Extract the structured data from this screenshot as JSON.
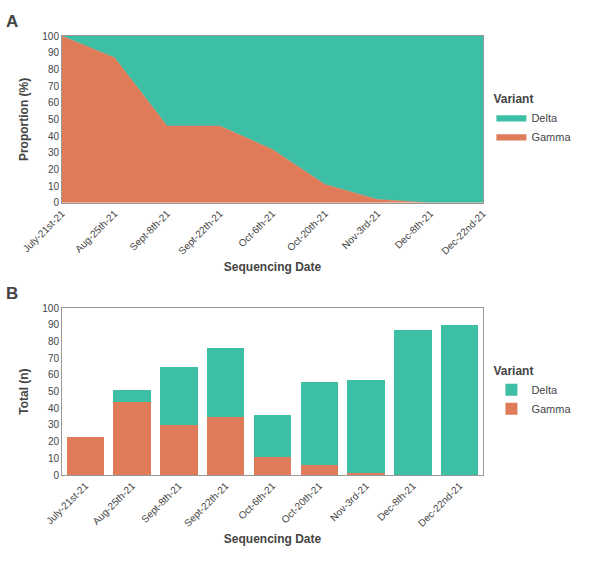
{
  "chart_data": [
    {
      "type": "area",
      "title": "A",
      "stacked": true,
      "categories": [
        "July-21st-21",
        "Aug-25th-21",
        "Sept-8th-21",
        "Sept-22th-21",
        "Oct-6th-21",
        "Oct-20th-21",
        "Nov-3rd-21",
        "Dec-8th-21",
        "Dec-22nd-21"
      ],
      "series": [
        {
          "name": "Gamma",
          "color": "#E07B5A",
          "values": [
            100,
            87,
            46,
            46,
            32,
            11,
            2,
            0,
            0
          ]
        },
        {
          "name": "Delta",
          "color": "#3DBFA5",
          "values": [
            0,
            13,
            54,
            54,
            68,
            89,
            98,
            100,
            100
          ]
        }
      ],
      "xlabel": "Sequencing Date",
      "ylabel": "Proportion (%)",
      "ylim": [
        0,
        100
      ],
      "yticks": [
        0,
        10,
        20,
        30,
        40,
        50,
        60,
        70,
        80,
        90,
        100
      ],
      "grid": false,
      "legend": "right",
      "legend_title": "Variant"
    },
    {
      "type": "bar",
      "title": "B",
      "stacked": true,
      "categories": [
        "July-21st-21",
        "Aug-25th-21",
        "Sept-8th-21",
        "Sept-22th-21",
        "Oct-6th-21",
        "Oct-20th-21",
        "Nov-3rd-21",
        "Dec-8th-21",
        "Dec-22nd-21"
      ],
      "series": [
        {
          "name": "Gamma",
          "color": "#E07B5A",
          "values": [
            23,
            44,
            30,
            35,
            11,
            6,
            1,
            0,
            0
          ]
        },
        {
          "name": "Delta",
          "color": "#3DBFA5",
          "values": [
            0,
            7,
            35,
            41,
            25,
            50,
            56,
            87,
            90
          ]
        }
      ],
      "xlabel": "Sequencing Date",
      "ylabel": "Total (n)",
      "ylim": [
        0,
        100
      ],
      "yticks": [
        0,
        10,
        20,
        30,
        40,
        50,
        60,
        70,
        80,
        90,
        100
      ],
      "grid": false,
      "legend": "right",
      "legend_title": "Variant"
    }
  ]
}
